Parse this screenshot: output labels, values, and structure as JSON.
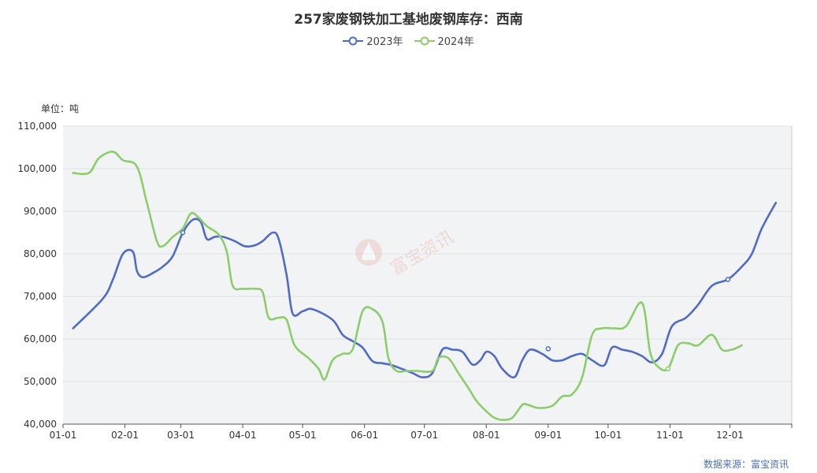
{
  "title": "257家废钢铁加工基地废钢库存：西南",
  "unit_label": "单位：吨",
  "source_label": "数据来源：富宝资讯",
  "watermark": "富宝资讯",
  "colors": {
    "s2023": "#4f6bc8",
    "s2024": "#8ccd6b",
    "plot_bg": "#f2f3f5"
  },
  "chart_data": {
    "type": "line",
    "title": "257家废钢铁加工基地废钢库存：西南",
    "ylabel": "单位：吨",
    "ylim": [
      40000,
      110000
    ],
    "yticks": [
      40000,
      50000,
      60000,
      70000,
      80000,
      90000,
      100000,
      110000
    ],
    "ytick_labels": [
      "40,000",
      "50,000",
      "60,000",
      "70,000",
      "80,000",
      "90,000",
      "100,000",
      "110,000"
    ],
    "xlim": [
      0,
      365
    ],
    "xticks": [
      0,
      31,
      59,
      90,
      120,
      151,
      181,
      212,
      243,
      273,
      304,
      334
    ],
    "xtick_labels": [
      "01-01",
      "02-01",
      "03-01",
      "04-01",
      "05-01",
      "06-01",
      "07-01",
      "08-01",
      "09-01",
      "10-01",
      "11-01",
      "12-01"
    ],
    "grid": true,
    "legend_position": "top-center",
    "series": [
      {
        "name": "2023年",
        "color": "#4f6bc8",
        "points": [
          [
            5,
            62500
          ],
          [
            20,
            69500
          ],
          [
            25,
            74000
          ],
          [
            30,
            80000
          ],
          [
            35,
            80500
          ],
          [
            37,
            76000
          ],
          [
            40,
            74500
          ],
          [
            45,
            75500
          ],
          [
            50,
            77000
          ],
          [
            55,
            79500
          ],
          [
            60,
            85000
          ],
          [
            65,
            88000
          ],
          [
            69,
            87500
          ],
          [
            72,
            83500
          ],
          [
            76,
            84000
          ],
          [
            80,
            84000
          ],
          [
            86,
            83000
          ],
          [
            91,
            81800
          ],
          [
            96,
            82000
          ],
          [
            100,
            83000
          ],
          [
            105,
            85000
          ],
          [
            108,
            83500
          ],
          [
            112,
            75000
          ],
          [
            115,
            66000
          ],
          [
            120,
            66500
          ],
          [
            125,
            67000
          ],
          [
            135,
            64500
          ],
          [
            140,
            61000
          ],
          [
            145,
            59500
          ],
          [
            150,
            58000
          ],
          [
            155,
            54800
          ],
          [
            160,
            54300
          ],
          [
            165,
            53800
          ],
          [
            175,
            52000
          ],
          [
            180,
            51000
          ],
          [
            185,
            52000
          ],
          [
            190,
            57500
          ],
          [
            195,
            57500
          ],
          [
            200,
            57000
          ],
          [
            205,
            54000
          ],
          [
            209,
            55000
          ],
          [
            212,
            57000
          ],
          [
            216,
            56000
          ],
          [
            220,
            53000
          ],
          [
            226,
            51000
          ],
          [
            230,
            55000
          ],
          [
            234,
            57500
          ],
          [
            240,
            56500
          ],
          [
            245,
            55000
          ],
          [
            250,
            55000
          ],
          [
            255,
            56000
          ],
          [
            260,
            56500
          ],
          [
            265,
            55000
          ],
          [
            271,
            53800
          ],
          [
            275,
            58000
          ],
          [
            280,
            57500
          ],
          [
            285,
            57000
          ],
          [
            290,
            56000
          ],
          [
            295,
            54500
          ],
          [
            300,
            56500
          ],
          [
            305,
            63000
          ],
          [
            312,
            65000
          ],
          [
            318,
            68000
          ],
          [
            325,
            72500
          ],
          [
            333,
            74000
          ],
          [
            340,
            77000
          ],
          [
            345,
            80000
          ],
          [
            350,
            86000
          ],
          [
            357,
            92000
          ]
        ]
      },
      {
        "name": "2024年",
        "color": "#8ccd6b",
        "points": [
          [
            5,
            99000
          ],
          [
            13,
            99000
          ],
          [
            18,
            102500
          ],
          [
            25,
            104000
          ],
          [
            30,
            102000
          ],
          [
            37,
            100500
          ],
          [
            42,
            92000
          ],
          [
            47,
            83000
          ],
          [
            50,
            81800
          ],
          [
            55,
            84000
          ],
          [
            60,
            86000
          ],
          [
            64,
            89500
          ],
          [
            68,
            88500
          ],
          [
            72,
            86500
          ],
          [
            78,
            84500
          ],
          [
            82,
            80500
          ],
          [
            85,
            72500
          ],
          [
            90,
            71800
          ],
          [
            96,
            71800
          ],
          [
            100,
            71000
          ],
          [
            103,
            65000
          ],
          [
            108,
            65000
          ],
          [
            112,
            64500
          ],
          [
            116,
            58500
          ],
          [
            123,
            55500
          ],
          [
            128,
            53000
          ],
          [
            131,
            50500
          ],
          [
            135,
            55000
          ],
          [
            140,
            56500
          ],
          [
            145,
            57500
          ],
          [
            150,
            66500
          ],
          [
            155,
            67000
          ],
          [
            160,
            64000
          ],
          [
            163,
            55500
          ],
          [
            167,
            52500
          ],
          [
            172,
            52500
          ],
          [
            177,
            52500
          ],
          [
            185,
            52500
          ],
          [
            188,
            55500
          ],
          [
            193,
            55500
          ],
          [
            198,
            52000
          ],
          [
            203,
            48500
          ],
          [
            207,
            45500
          ],
          [
            212,
            43000
          ],
          [
            216,
            41500
          ],
          [
            220,
            41000
          ],
          [
            225,
            41500
          ],
          [
            230,
            44500
          ],
          [
            233,
            44500
          ],
          [
            238,
            43800
          ],
          [
            245,
            44300
          ],
          [
            250,
            46500
          ],
          [
            255,
            47000
          ],
          [
            260,
            51000
          ],
          [
            265,
            61000
          ],
          [
            270,
            62500
          ],
          [
            276,
            62500
          ],
          [
            282,
            63000
          ],
          [
            290,
            68500
          ],
          [
            294,
            57000
          ],
          [
            298,
            53500
          ],
          [
            303,
            53000
          ],
          [
            308,
            58500
          ],
          [
            313,
            59000
          ],
          [
            318,
            58500
          ],
          [
            325,
            61000
          ],
          [
            330,
            57500
          ],
          [
            335,
            57500
          ],
          [
            340,
            58500
          ]
        ]
      }
    ],
    "markers": [
      {
        "series": "2023年",
        "x": 60,
        "y": 85000
      },
      {
        "series": "2023年",
        "x": 243,
        "y": 57700
      },
      {
        "series": "2023年",
        "x": 333,
        "y": 74000
      },
      {
        "series": "2024年",
        "x": 303,
        "y": 53000
      }
    ]
  }
}
